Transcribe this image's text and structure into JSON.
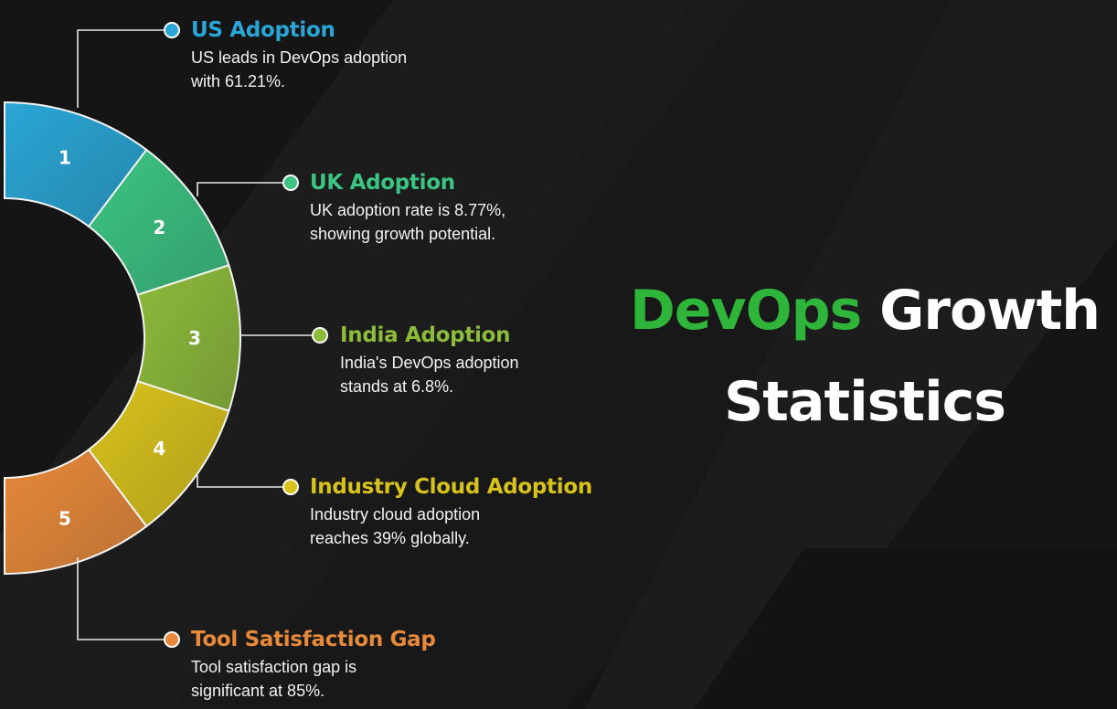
{
  "headline": {
    "accent": "DevOps",
    "rest": "Growth",
    "line2": "Statistics",
    "accent_color": "#2fb53a"
  },
  "segments": [
    {
      "number": "1",
      "title": "US Adoption",
      "description": "US leads in DevOps adoption with 61.21%.",
      "color": "#2aa6d6",
      "desc_lines": [
        "US leads in DevOps adoption",
        "with 61.21%."
      ]
    },
    {
      "number": "2",
      "title": "UK Adoption",
      "description": "UK adoption rate is 8.77%, showing growth potential.",
      "color": "#3cc483",
      "desc_lines": [
        "UK adoption rate is 8.77%,",
        "showing growth potential."
      ]
    },
    {
      "number": "3",
      "title": "India Adoption",
      "description": "India's DevOps adoption stands at 6.8%.",
      "color": "#8dbb3b",
      "desc_lines": [
        "India's DevOps adoption",
        "stands at 6.8%."
      ]
    },
    {
      "number": "4",
      "title": "Industry Cloud Adoption",
      "description": "Industry cloud adoption reaches 39% globally.",
      "color": "#d8c21c",
      "desc_lines": [
        "Industry cloud adoption",
        "reaches 39% globally."
      ]
    },
    {
      "number": "5",
      "title": "Tool Satisfaction Gap",
      "description": "Tool satisfaction gap is significant at 85%.",
      "color": "#e7893a",
      "desc_lines": [
        "Tool satisfaction gap is",
        "significant at 85%."
      ]
    }
  ]
}
